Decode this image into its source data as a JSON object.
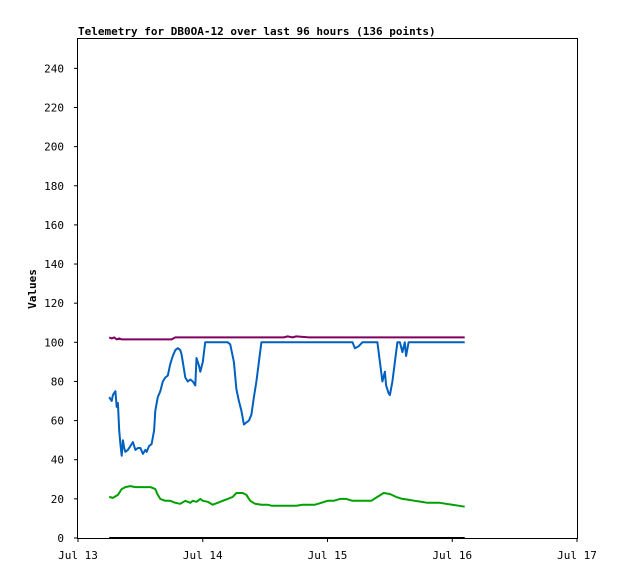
{
  "chart_data": {
    "type": "line",
    "title": "Telemetry for DB0OA-12 over last 96 hours (136 points)",
    "xlabel": "",
    "ylabel": "Values",
    "xlim": [
      0,
      4
    ],
    "ylim": [
      0,
      255
    ],
    "x_ticks": [
      {
        "value": 0,
        "label": "Jul 13"
      },
      {
        "value": 1,
        "label": "Jul 14"
      },
      {
        "value": 2,
        "label": "Jul 15"
      },
      {
        "value": 3,
        "label": "Jul 16"
      },
      {
        "value": 4,
        "label": "Jul 17"
      }
    ],
    "y_ticks": [
      0,
      20,
      40,
      60,
      80,
      100,
      120,
      140,
      160,
      180,
      200,
      220,
      240
    ],
    "grid": false,
    "legend": "none",
    "series": [
      {
        "color": "#800060",
        "points": [
          [
            0.25,
            102.5
          ],
          [
            0.27,
            102
          ],
          [
            0.29,
            102.5
          ],
          [
            0.31,
            101.5
          ],
          [
            0.33,
            102
          ],
          [
            0.35,
            101.5
          ],
          [
            0.5,
            101.5
          ],
          [
            0.6,
            101.5
          ],
          [
            0.75,
            101.5
          ],
          [
            0.78,
            102.5
          ],
          [
            1.0,
            102.5
          ],
          [
            1.2,
            102.5
          ],
          [
            1.4,
            102.5
          ],
          [
            1.65,
            102.5
          ],
          [
            1.68,
            103
          ],
          [
            1.72,
            102.5
          ],
          [
            1.75,
            103
          ],
          [
            1.85,
            102.5
          ],
          [
            2.0,
            102.5
          ],
          [
            2.3,
            102.5
          ],
          [
            2.6,
            102.5
          ],
          [
            2.8,
            102.5
          ],
          [
            3.1,
            102.5
          ]
        ]
      },
      {
        "color": "#0060c0",
        "points": [
          [
            0.25,
            72
          ],
          [
            0.27,
            70
          ],
          [
            0.28,
            73
          ],
          [
            0.3,
            75
          ],
          [
            0.31,
            67
          ],
          [
            0.32,
            69
          ],
          [
            0.33,
            55
          ],
          [
            0.34,
            48
          ],
          [
            0.35,
            42
          ],
          [
            0.36,
            50
          ],
          [
            0.37,
            46
          ],
          [
            0.38,
            44
          ],
          [
            0.4,
            45
          ],
          [
            0.42,
            47
          ],
          [
            0.44,
            49
          ],
          [
            0.46,
            45
          ],
          [
            0.48,
            46
          ],
          [
            0.5,
            46
          ],
          [
            0.52,
            43
          ],
          [
            0.54,
            45
          ],
          [
            0.55,
            44
          ],
          [
            0.57,
            47
          ],
          [
            0.59,
            48
          ],
          [
            0.61,
            55
          ],
          [
            0.62,
            65
          ],
          [
            0.64,
            72
          ],
          [
            0.66,
            75
          ],
          [
            0.68,
            80
          ],
          [
            0.7,
            82
          ],
          [
            0.72,
            83
          ],
          [
            0.74,
            89
          ],
          [
            0.76,
            93
          ],
          [
            0.78,
            96
          ],
          [
            0.8,
            97
          ],
          [
            0.82,
            96
          ],
          [
            0.83,
            94
          ],
          [
            0.84,
            90
          ],
          [
            0.86,
            82
          ],
          [
            0.88,
            80
          ],
          [
            0.9,
            81
          ],
          [
            0.92,
            80
          ],
          [
            0.94,
            78
          ],
          [
            0.95,
            92
          ],
          [
            0.97,
            88
          ],
          [
            0.98,
            85
          ],
          [
            1.0,
            90
          ],
          [
            1.02,
            100
          ],
          [
            1.05,
            100
          ],
          [
            1.1,
            100
          ],
          [
            1.15,
            100
          ],
          [
            1.2,
            100
          ],
          [
            1.22,
            99
          ],
          [
            1.25,
            90
          ],
          [
            1.27,
            76
          ],
          [
            1.29,
            70
          ],
          [
            1.31,
            65
          ],
          [
            1.33,
            58
          ],
          [
            1.35,
            59
          ],
          [
            1.37,
            60
          ],
          [
            1.39,
            63
          ],
          [
            1.41,
            72
          ],
          [
            1.43,
            80
          ],
          [
            1.45,
            90
          ],
          [
            1.47,
            100
          ],
          [
            1.55,
            100
          ],
          [
            1.7,
            100
          ],
          [
            1.85,
            100
          ],
          [
            2.0,
            100
          ],
          [
            2.1,
            100
          ],
          [
            2.2,
            100
          ],
          [
            2.22,
            97
          ],
          [
            2.25,
            98
          ],
          [
            2.28,
            100
          ],
          [
            2.4,
            100
          ],
          [
            2.42,
            90
          ],
          [
            2.44,
            80
          ],
          [
            2.46,
            85
          ],
          [
            2.47,
            78
          ],
          [
            2.49,
            74
          ],
          [
            2.5,
            73
          ],
          [
            2.52,
            80
          ],
          [
            2.54,
            90
          ],
          [
            2.56,
            100
          ],
          [
            2.58,
            100
          ],
          [
            2.6,
            95
          ],
          [
            2.62,
            100
          ],
          [
            2.63,
            93
          ],
          [
            2.65,
            100
          ],
          [
            2.7,
            100
          ],
          [
            2.8,
            100
          ],
          [
            2.9,
            100
          ],
          [
            3.0,
            100
          ],
          [
            3.1,
            100
          ]
        ]
      },
      {
        "color": "#00a000",
        "points": [
          [
            0.25,
            21
          ],
          [
            0.28,
            20.5
          ],
          [
            0.32,
            22
          ],
          [
            0.35,
            25
          ],
          [
            0.38,
            26
          ],
          [
            0.42,
            26.5
          ],
          [
            0.46,
            26
          ],
          [
            0.52,
            26
          ],
          [
            0.58,
            26
          ],
          [
            0.62,
            25
          ],
          [
            0.64,
            22
          ],
          [
            0.66,
            20
          ],
          [
            0.7,
            19
          ],
          [
            0.74,
            19
          ],
          [
            0.78,
            18
          ],
          [
            0.82,
            17.5
          ],
          [
            0.86,
            19
          ],
          [
            0.88,
            18.5
          ],
          [
            0.9,
            18
          ],
          [
            0.92,
            19
          ],
          [
            0.95,
            18.5
          ],
          [
            0.98,
            20
          ],
          [
            1.0,
            19
          ],
          [
            1.04,
            18.5
          ],
          [
            1.08,
            17
          ],
          [
            1.12,
            18
          ],
          [
            1.16,
            19
          ],
          [
            1.2,
            20
          ],
          [
            1.24,
            21
          ],
          [
            1.27,
            23
          ],
          [
            1.32,
            23
          ],
          [
            1.35,
            22
          ],
          [
            1.38,
            19
          ],
          [
            1.42,
            17.5
          ],
          [
            1.47,
            17
          ],
          [
            1.52,
            17
          ],
          [
            1.55,
            16.5
          ],
          [
            1.6,
            16.5
          ],
          [
            1.65,
            16.5
          ],
          [
            1.7,
            16.5
          ],
          [
            1.75,
            16.5
          ],
          [
            1.8,
            17
          ],
          [
            1.85,
            17
          ],
          [
            1.9,
            17
          ],
          [
            1.95,
            18
          ],
          [
            2.0,
            19
          ],
          [
            2.05,
            19
          ],
          [
            2.1,
            20
          ],
          [
            2.15,
            20
          ],
          [
            2.2,
            19
          ],
          [
            2.25,
            19
          ],
          [
            2.3,
            19
          ],
          [
            2.35,
            19
          ],
          [
            2.4,
            21
          ],
          [
            2.45,
            23
          ],
          [
            2.5,
            22.5
          ],
          [
            2.55,
            21
          ],
          [
            2.6,
            20
          ],
          [
            2.65,
            19.5
          ],
          [
            2.7,
            19
          ],
          [
            2.75,
            18.5
          ],
          [
            2.8,
            18
          ],
          [
            2.85,
            18
          ],
          [
            2.9,
            18
          ],
          [
            2.95,
            17.5
          ],
          [
            3.0,
            17
          ],
          [
            3.05,
            16.5
          ],
          [
            3.1,
            16
          ]
        ]
      },
      {
        "color": "#000000",
        "points": [
          [
            0.25,
            0
          ],
          [
            0.8,
            0
          ],
          [
            1.3,
            0
          ],
          [
            1.8,
            0
          ],
          [
            2.3,
            0
          ],
          [
            2.8,
            0
          ],
          [
            3.1,
            0
          ]
        ]
      }
    ]
  }
}
